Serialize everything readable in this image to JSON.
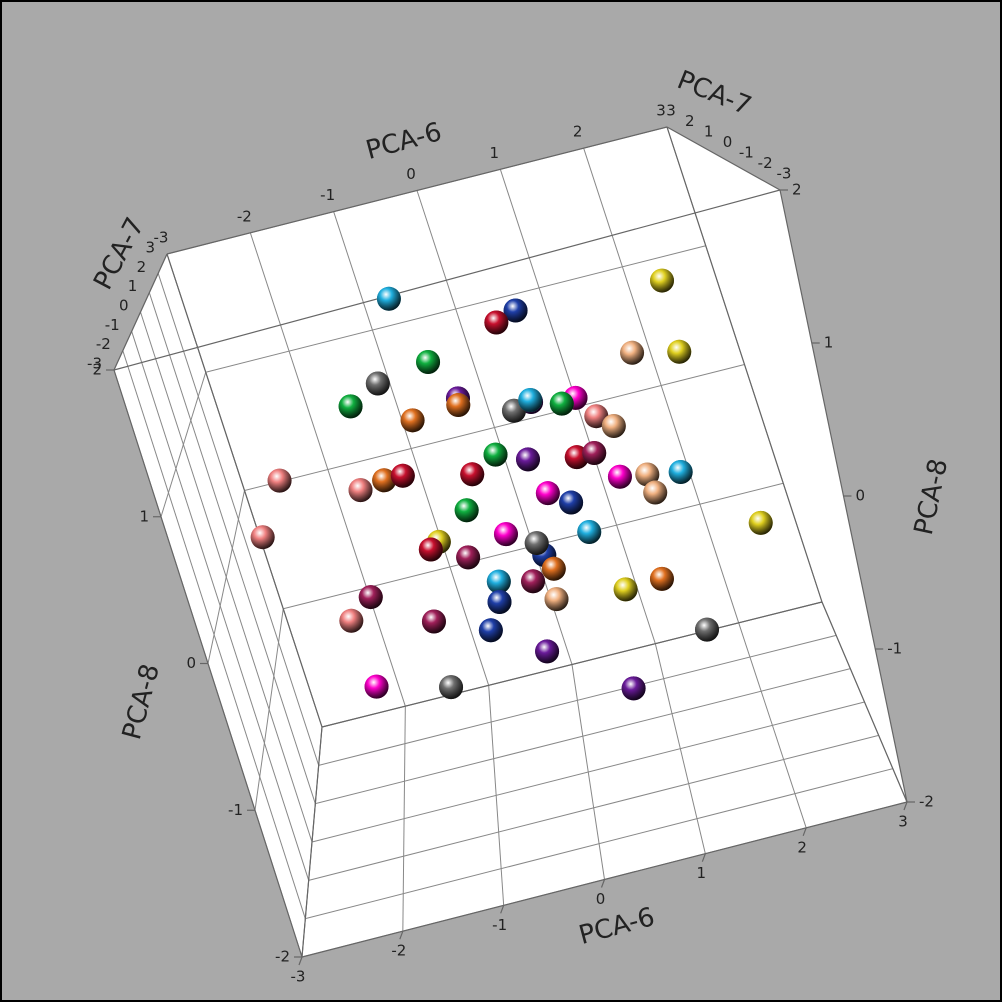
{
  "chart_data": {
    "type": "scatter3d",
    "x_label": "PCA-6",
    "y_label": "PCA-7",
    "z_label": "PCA-8",
    "xlim": [
      -3,
      3
    ],
    "ylim": [
      -3,
      3
    ],
    "zlim": [
      -2,
      2
    ],
    "xticks": [
      -3,
      -2,
      -1,
      0,
      1,
      2,
      3
    ],
    "yticks": [
      -3,
      -2,
      -1,
      0,
      1,
      2,
      3
    ],
    "zticks": [
      -2,
      -1,
      0,
      1,
      2
    ],
    "grid": true,
    "x": [
      -0.3,
      0.2,
      0.5,
      -0.8,
      1.1,
      -0.1,
      0.7,
      -1.2,
      0.3,
      -0.5,
      1.4,
      0.0,
      -0.9,
      0.6,
      -0.2,
      0.9,
      -1.5,
      0.4,
      1.8,
      -0.7,
      0.1,
      -0.4,
      1.2,
      -1.0,
      0.8,
      -0.6,
      0.3,
      2.1,
      -2.3,
      -1.8,
      0.5,
      -0.2,
      1.6,
      -1.3,
      0.2,
      1.0,
      -0.8,
      0.6,
      -0.1,
      2.4,
      -2.6,
      0.9,
      -0.4,
      1.3,
      -0.9,
      0.0,
      1.7,
      -1.6,
      0.4,
      -0.3,
      0.7,
      2.0,
      -2.0,
      1.1,
      -0.6,
      0.2,
      -1.1,
      0.8,
      1.5,
      -0.5
    ],
    "y": [
      0.4,
      -0.6,
      1.0,
      -0.2,
      0.3,
      -1.1,
      0.8,
      0.5,
      -0.4,
      1.2,
      -0.8,
      0.1,
      -1.3,
      1.5,
      -0.5,
      0.0,
      0.9,
      -1.7,
      0.6,
      -0.3,
      1.8,
      0.2,
      -0.9,
      -1.4,
      1.1,
      0.7,
      -2.0,
      0.3,
      1.0,
      -0.6,
      2.2,
      -1.5,
      -0.1,
      0.4,
      -0.7,
      1.6,
      -2.1,
      0.2,
      0.9,
      -0.4,
      0.6,
      -1.2,
      1.3,
      0.5,
      -0.9,
      -0.2,
      1.4,
      -0.5,
      2.5,
      -2.4,
      0.0,
      -1.0,
      0.8,
      -1.8,
      0.3,
      1.7,
      -0.3,
      0.6,
      1.1,
      -1.6
    ],
    "z": [
      0.2,
      -0.3,
      0.5,
      -0.1,
      0.4,
      0.0,
      -0.5,
      0.3,
      0.7,
      -0.2,
      0.1,
      -0.6,
      0.6,
      -0.4,
      0.9,
      -0.8,
      0.2,
      0.3,
      -0.2,
      0.8,
      -0.7,
      1.1,
      0.5,
      -0.4,
      0.0,
      -1.0,
      0.6,
      0.7,
      0.4,
      -0.9,
      0.3,
      1.0,
      -1.2,
      0.9,
      -0.6,
      -0.1,
      0.2,
      1.3,
      -1.3,
      -0.5,
      0.1,
      0.8,
      -0.8,
      -0.9,
      1.2,
      0.4,
      0.6,
      -0.3,
      0.9,
      -0.2,
      -1.5,
      1.4,
      -0.7,
      0.3,
      1.6,
      -0.9,
      -1.1,
      0.5,
      -0.4,
      0.0
    ],
    "colors": [
      "#c8102e",
      "#1f3fa8",
      "#6a1b9a",
      "#e0d020",
      "#f08080",
      "#ff00cc",
      "#20b0e0",
      "#e07020",
      "#707070",
      "#10b040",
      "#f0b080",
      "#a0205a",
      "#c8102e",
      "#1f3fa8",
      "#6a1b9a",
      "#e0d020",
      "#f08080",
      "#ff00cc",
      "#20b0e0",
      "#e07020",
      "#707070",
      "#10b040",
      "#f0b080",
      "#a0205a",
      "#c8102e",
      "#1f3fa8",
      "#6a1b9a",
      "#e0d020",
      "#f08080",
      "#ff00cc",
      "#20b0e0",
      "#e07020",
      "#707070",
      "#10b040",
      "#f0b080",
      "#a0205a",
      "#c8102e",
      "#1f3fa8",
      "#6a1b9a",
      "#e0d020",
      "#f08080",
      "#ff00cc",
      "#20b0e0",
      "#e07020",
      "#707070",
      "#10b040",
      "#f0b080",
      "#a0205a",
      "#c8102e",
      "#1f3fa8",
      "#6a1b9a",
      "#e0d020",
      "#f08080",
      "#ff00cc",
      "#20b0e0",
      "#e07020",
      "#707070",
      "#10b040",
      "#f0b080",
      "#a0205a"
    ]
  }
}
